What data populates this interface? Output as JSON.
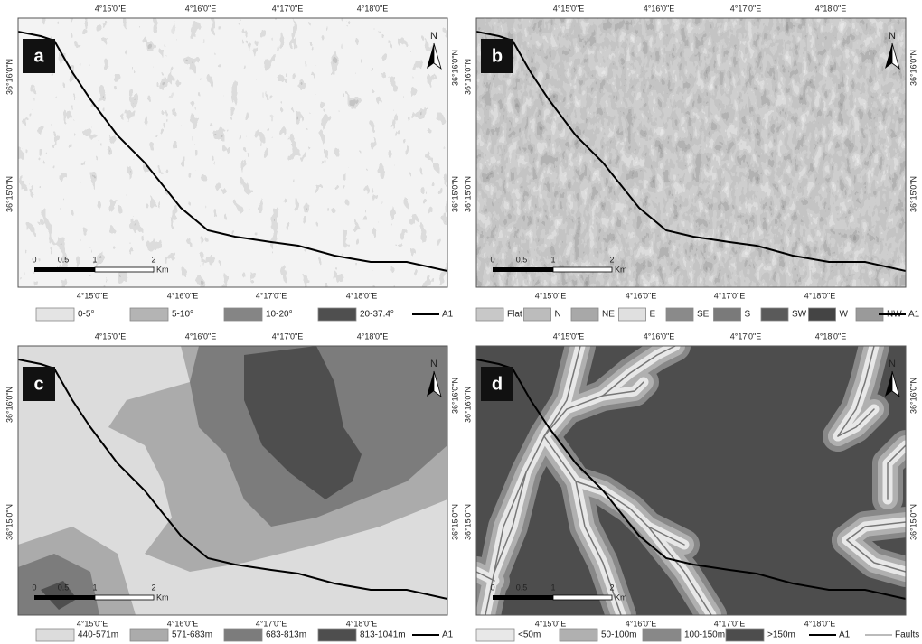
{
  "graticule": {
    "longitudes": [
      "4°15'0\"E",
      "4°16'0\"E",
      "4°17'0\"E",
      "4°18'0\"E"
    ],
    "latitudes": [
      "36°16'0\"N",
      "36°15'0\"N"
    ]
  },
  "scale_bar": {
    "labels": [
      "0",
      "0.5",
      "1",
      "2"
    ],
    "unit": "Km"
  },
  "north_label": "N",
  "panels": [
    {
      "label": "a",
      "legend": [
        {
          "label": "0-5°",
          "color": "#e4e4e4"
        },
        {
          "label": "5-10°",
          "color": "#b4b4b4"
        },
        {
          "label": "10-20°",
          "color": "#858585"
        },
        {
          "label": "20-37.4°",
          "color": "#4f4f4f"
        }
      ],
      "lines": [
        {
          "label": "A1",
          "color": "#000000"
        }
      ]
    },
    {
      "label": "b",
      "legend": [
        {
          "label": "Flat",
          "color": "#c8c8c8"
        },
        {
          "label": "N",
          "color": "#bcbcbc"
        },
        {
          "label": "NE",
          "color": "#a8a8a8"
        },
        {
          "label": "E",
          "color": "#e0e0e0"
        },
        {
          "label": "SE",
          "color": "#8a8a8a"
        },
        {
          "label": "S",
          "color": "#7a7a7a"
        },
        {
          "label": "SW",
          "color": "#5a5a5a"
        },
        {
          "label": "W",
          "color": "#444444"
        },
        {
          "label": "NW",
          "color": "#9a9a9a"
        }
      ],
      "lines": [
        {
          "label": "A1",
          "color": "#000000"
        }
      ]
    },
    {
      "label": "c",
      "legend": [
        {
          "label": "440-571m",
          "color": "#dcdcdc"
        },
        {
          "label": "571-683m",
          "color": "#ababab"
        },
        {
          "label": "683-813m",
          "color": "#7c7c7c"
        },
        {
          "label": "813-1041m",
          "color": "#4e4e4e"
        }
      ],
      "lines": [
        {
          "label": "A1",
          "color": "#000000"
        }
      ]
    },
    {
      "label": "d",
      "legend": [
        {
          "label": "<50m",
          "color": "#e8e8e8"
        },
        {
          "label": "50-100m",
          "color": "#b0b0b0"
        },
        {
          "label": "100-150m",
          "color": "#888888"
        },
        {
          "label": ">150m",
          "color": "#4d4d4d"
        }
      ],
      "lines": [
        {
          "label": "A1",
          "color": "#000000"
        },
        {
          "label": "Faults",
          "color": "#777777"
        }
      ]
    }
  ]
}
